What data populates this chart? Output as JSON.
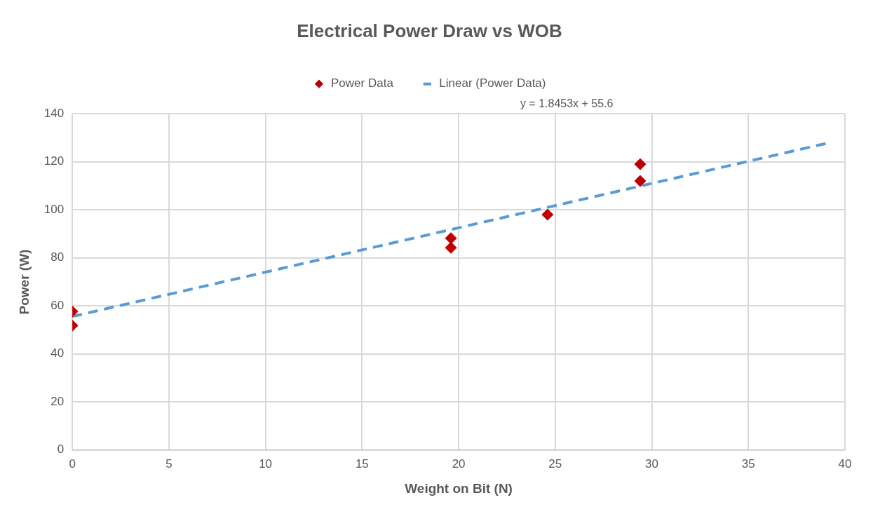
{
  "chart_data": {
    "type": "scatter",
    "title": "Electrical Power Draw vs WOB",
    "xlabel": "Weight on Bit (N)",
    "ylabel": "Power (W)",
    "series": [
      {
        "name": "Power Data",
        "type": "scatter",
        "color": "#c00000",
        "marker": "diamond",
        "x": [
          0,
          0,
          19.6,
          19.6,
          24.6,
          29.4,
          29.4
        ],
        "values": [
          57.7,
          51.8,
          88.2,
          84.2,
          98,
          119,
          112
        ]
      },
      {
        "name": "Linear (Power Data)",
        "type": "line",
        "color": "#5b9bd5",
        "marker": "none",
        "line_style": "dashed",
        "x": [
          0,
          39
        ],
        "values": [
          55.6,
          127.6
        ]
      }
    ],
    "annotations": [
      "y = 1.8453x + 55.6"
    ],
    "xlim": [
      0,
      40
    ],
    "xticks": [
      0,
      5,
      10,
      15,
      20,
      25,
      30,
      35,
      40
    ],
    "ylim": [
      0,
      140
    ],
    "yticks": [
      0,
      20,
      40,
      60,
      80,
      100,
      120,
      140
    ],
    "grid": true,
    "legend": "top"
  }
}
